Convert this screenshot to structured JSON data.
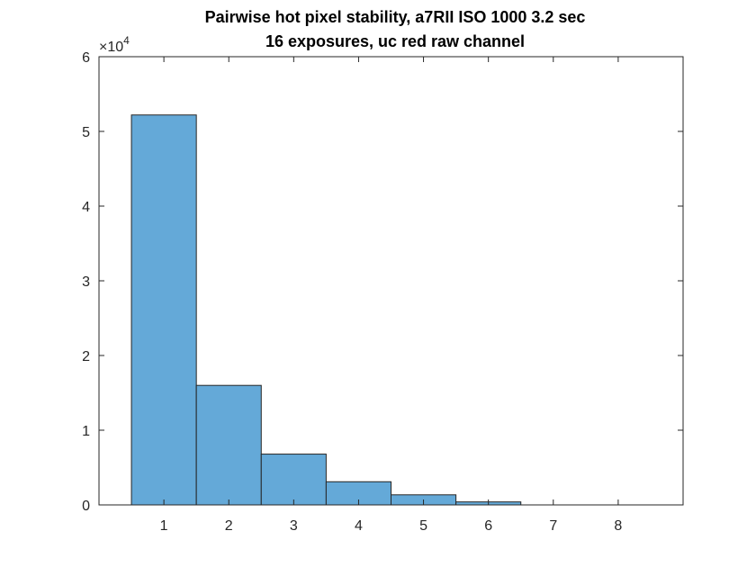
{
  "chart_data": {
    "type": "bar",
    "title": [
      "Pairwise hot pixel stability, a7RII ISO 1000 3.2 sec",
      "16 exposures, uc red raw channel"
    ],
    "xlabel": "",
    "ylabel": "",
    "categories": [
      "1",
      "2",
      "3",
      "4",
      "5",
      "6",
      "7",
      "8"
    ],
    "values": [
      52200,
      16000,
      6800,
      3100,
      1350,
      400,
      0,
      0
    ],
    "ylim": [
      0,
      60000
    ],
    "xlim": [
      0,
      9
    ],
    "y_exponent_label": "×10",
    "y_exponent_power": "4",
    "y_ticks": [
      "0",
      "1",
      "2",
      "3",
      "4",
      "5",
      "6"
    ],
    "x_ticks": [
      "1",
      "2",
      "3",
      "4",
      "5",
      "6",
      "7",
      "8"
    ],
    "bar_color": "#64a9d8",
    "edge_color": "#262626",
    "grid": false,
    "legend": "none"
  }
}
